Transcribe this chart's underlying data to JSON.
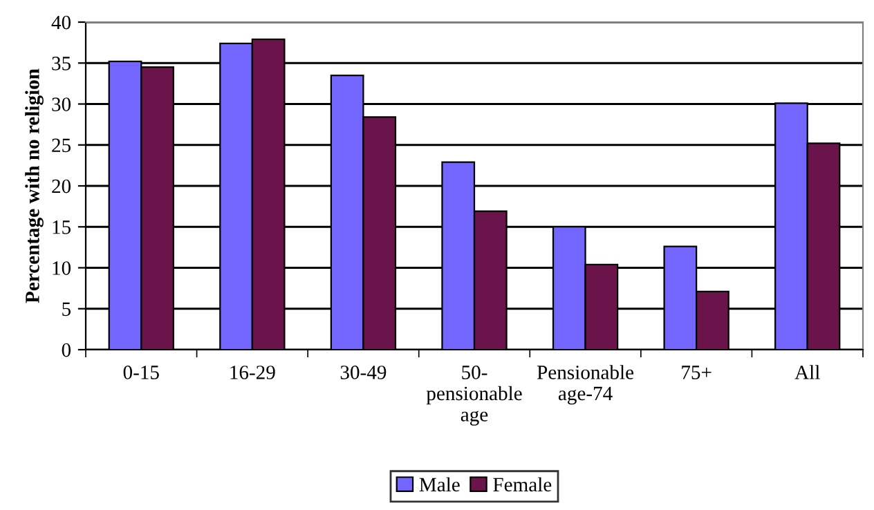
{
  "chart_data": {
    "type": "bar",
    "ylabel": "Percentage with no religion",
    "categories": [
      "0-15",
      "16-29",
      "30-49",
      "50-\npensionable\nage",
      "Pensionable\nage-74",
      "75+",
      "All"
    ],
    "series": [
      {
        "name": "Male",
        "color": "#7366ff",
        "values": [
          35.2,
          37.4,
          33.5,
          22.9,
          15.0,
          12.6,
          30.1
        ]
      },
      {
        "name": "Female",
        "color": "#6b144c",
        "values": [
          34.5,
          37.9,
          28.4,
          16.9,
          10.4,
          7.1,
          25.2
        ]
      }
    ],
    "ylim": [
      0,
      40
    ],
    "yticks": [
      0,
      5,
      10,
      15,
      20,
      25,
      30,
      35,
      40
    ],
    "grid": "y",
    "legend": "bottom"
  }
}
